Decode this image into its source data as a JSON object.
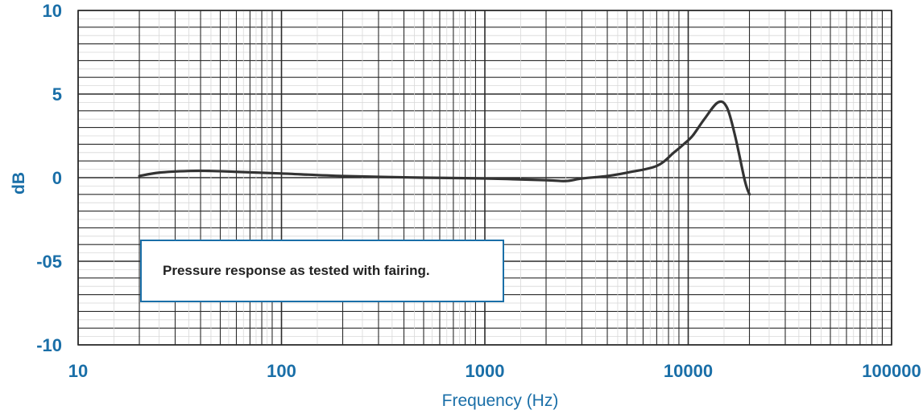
{
  "colors": {
    "accent": "#1a6fa8",
    "grid": "#2b2b2b",
    "curve": "#333333"
  },
  "chart_data": {
    "type": "line",
    "title": "",
    "xlabel": "Frequency (Hz)",
    "ylabel": "dB",
    "x_scale": "log",
    "xlim": [
      10,
      100000
    ],
    "ylim": [
      -10,
      10
    ],
    "x_ticks": [
      "10",
      "100",
      "1000",
      "10000",
      "100000"
    ],
    "y_ticks": [
      {
        "value": 10,
        "label": "10"
      },
      {
        "value": 5,
        "label": "5"
      },
      {
        "value": 0,
        "label": "0"
      },
      {
        "value": -5,
        "label": "-05"
      },
      {
        "value": -10,
        "label": "-10"
      }
    ],
    "grid": true,
    "annotation": "Pressure response as tested with fairing.",
    "series": [
      {
        "x": [
          20,
          25,
          35,
          45,
          60,
          100,
          200,
          500,
          1000,
          2000,
          2500,
          3000,
          4000,
          5000,
          7000,
          8500,
          9500,
          10500,
          12000,
          14000,
          15500,
          17000,
          19000,
          20000
        ],
        "y": [
          0.1,
          0.3,
          0.4,
          0.4,
          0.35,
          0.25,
          0.1,
          0.0,
          -0.05,
          -0.15,
          -0.2,
          -0.05,
          0.1,
          0.3,
          0.7,
          1.5,
          2.0,
          2.5,
          3.5,
          4.5,
          4.2,
          2.5,
          -0.2,
          -1.0
        ]
      }
    ]
  }
}
